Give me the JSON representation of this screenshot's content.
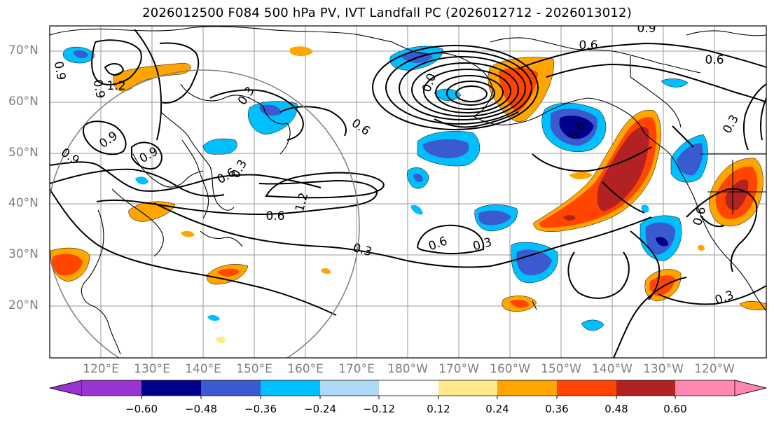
{
  "title": "2026012500 F084 500 hPa PV, IVT Landfall PC (2026012712 - 2026013012)",
  "map": {
    "projection": "PlateCarree",
    "lon_range": [
      110,
      250
    ],
    "lat_range": [
      10,
      75
    ],
    "lat_ticks": [
      "70°N",
      "60°N",
      "50°N",
      "40°N",
      "30°N",
      "20°N"
    ],
    "lon_ticks": [
      "120°E",
      "130°E",
      "140°E",
      "150°E",
      "160°E",
      "170°E",
      "180°W",
      "170°W",
      "160°W",
      "150°W",
      "140°W",
      "130°W",
      "120°W"
    ]
  },
  "colorbar": {
    "labels": [
      "−0.60",
      "−0.48",
      "−0.36",
      "−0.24",
      "−0.12",
      "0.12",
      "0.24",
      "0.36",
      "0.48",
      "0.60"
    ],
    "colors": [
      "#9a34d0",
      "#00008b",
      "#3a5ad0",
      "#00bfff",
      "#add8f6",
      "#ffffff",
      "#ffe98a",
      "#ffa500",
      "#ff4500",
      "#b22222",
      "#ff88b0"
    ]
  },
  "contour_labels": [
    "0.9",
    "0.6",
    "0.3",
    "1.2",
    "0.9",
    "0.9",
    "0.6",
    "0.3",
    "0.9",
    "1.2",
    "0.6",
    "0.6",
    "0.3",
    "0.6",
    "0.3",
    "0.3",
    "0.6",
    "0.3",
    "0.9",
    "0.6",
    "0.0",
    "0.9",
    "0.6"
  ]
}
